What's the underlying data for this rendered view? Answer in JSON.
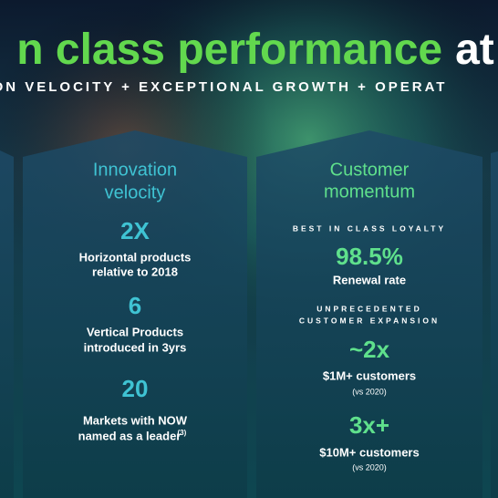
{
  "header": {
    "title_green": "n class performance",
    "title_white": "at",
    "subtitle": "ATION VELOCITY + EXCEPTIONAL GROWTH + OPERAT"
  },
  "panels": [
    {
      "heading": [
        "Innovation",
        "velocity"
      ],
      "items": [
        {
          "figure": "2X",
          "lines": [
            "Horizontal products",
            "relative to 2018"
          ]
        },
        {
          "figure": "6",
          "lines": [
            "Vertical Products",
            "introduced in 3yrs"
          ]
        },
        {
          "figure": "20",
          "lines": [
            "Markets with NOW",
            "named as a leader"
          ],
          "note": "(3)"
        }
      ]
    },
    {
      "heading": [
        "Customer",
        "momentum"
      ],
      "items": [
        {
          "kicker": [
            "BEST IN CLASS LOYALTY"
          ],
          "figure": "98.5%",
          "lines": [
            "Renewal rate"
          ]
        },
        {
          "kicker": [
            "UNPRECEDENTED",
            "CUSTOMER EXPANSION"
          ],
          "figure": "~2x",
          "lines": [
            "$1M+ customers"
          ],
          "small": "(vs 2020)"
        },
        {
          "figure": "3x+",
          "lines": [
            "$10M+ customers"
          ],
          "small": "(vs 2020)"
        }
      ]
    }
  ]
}
